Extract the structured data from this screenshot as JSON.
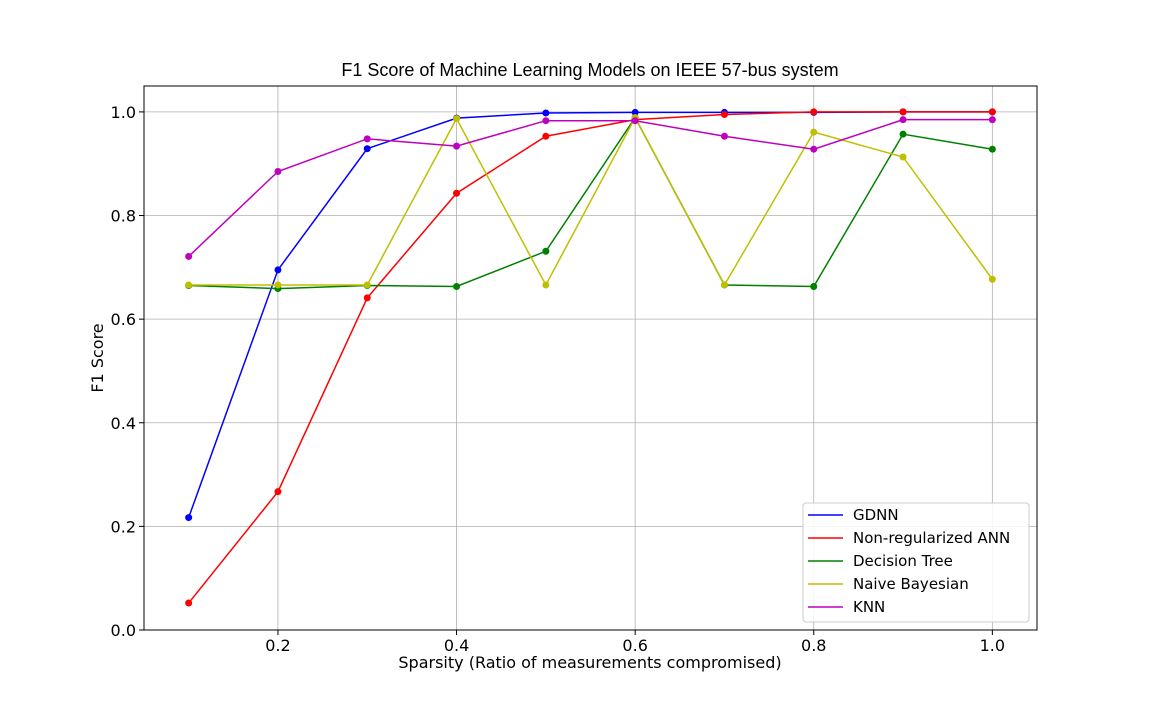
{
  "chart_data": {
    "type": "line",
    "title": "F1 Score of Machine Learning Models on IEEE 57-bus system",
    "xlabel": "Sparsity (Ratio of measurements compromised)",
    "ylabel": "F1 Score",
    "xlim": [
      0.05,
      1.05
    ],
    "ylim": [
      0.0,
      1.05
    ],
    "xticks": [
      0.2,
      0.4,
      0.6,
      0.8,
      1.0
    ],
    "xtick_labels": [
      "0.2",
      "0.4",
      "0.6",
      "0.8",
      "1.0"
    ],
    "yticks": [
      0.0,
      0.2,
      0.4,
      0.6,
      0.8,
      1.0
    ],
    "ytick_labels": [
      "0.0",
      "0.2",
      "0.4",
      "0.6",
      "0.8",
      "1.0"
    ],
    "grid": true,
    "legend_position": "lower-right",
    "x": [
      0.1,
      0.2,
      0.3,
      0.4,
      0.5,
      0.6,
      0.7,
      0.8,
      0.9,
      1.0
    ],
    "series": [
      {
        "name": "GDNN",
        "color": "#0000ff",
        "values": [
          0.217,
          0.695,
          0.929,
          0.988,
          0.998,
          0.999,
          0.999,
          0.999,
          1.0,
          1.0
        ]
      },
      {
        "name": "Non-regularized ANN",
        "color": "#ff0000",
        "values": [
          0.052,
          0.267,
          0.641,
          0.843,
          0.953,
          0.985,
          0.995,
          1.0,
          1.0,
          1.0
        ]
      },
      {
        "name": "Decision Tree",
        "color": "#008000",
        "values": [
          0.665,
          0.659,
          0.665,
          0.663,
          0.731,
          0.989,
          0.666,
          0.663,
          0.957,
          0.928
        ]
      },
      {
        "name": "Naive Bayesian",
        "color": "#bfbf00",
        "values": [
          0.666,
          0.666,
          0.666,
          0.987,
          0.666,
          0.989,
          0.666,
          0.961,
          0.913,
          0.677
        ]
      },
      {
        "name": "KNN",
        "color": "#bf00bf",
        "values": [
          0.721,
          0.885,
          0.948,
          0.934,
          0.983,
          0.983,
          0.953,
          0.928,
          0.985,
          0.985
        ]
      }
    ]
  }
}
